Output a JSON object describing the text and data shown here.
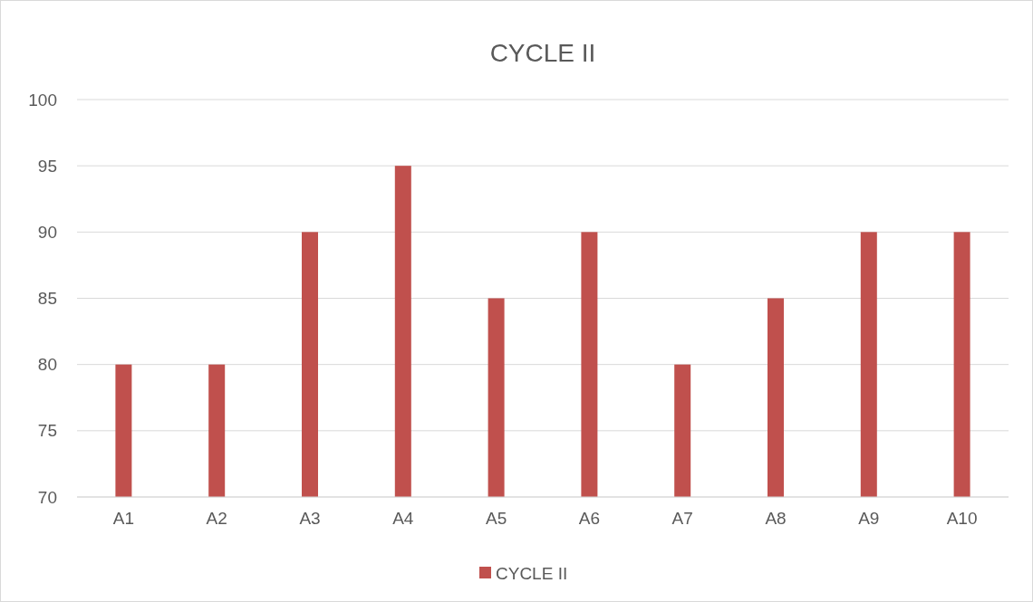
{
  "chart_data": {
    "type": "bar",
    "title": "CYCLE II",
    "categories": [
      "A1",
      "A2",
      "A3",
      "A4",
      "A5",
      "A6",
      "A7",
      "A8",
      "A9",
      "A10"
    ],
    "series": [
      {
        "name": "CYCLE II",
        "color": "#c0504d",
        "values": [
          80,
          80,
          90,
          95,
          85,
          90,
          80,
          85,
          90,
          90
        ]
      }
    ],
    "ylim": [
      70,
      100
    ],
    "yticks": [
      70,
      75,
      80,
      85,
      90,
      95,
      100
    ],
    "grid": "y",
    "legend": "bottom"
  }
}
